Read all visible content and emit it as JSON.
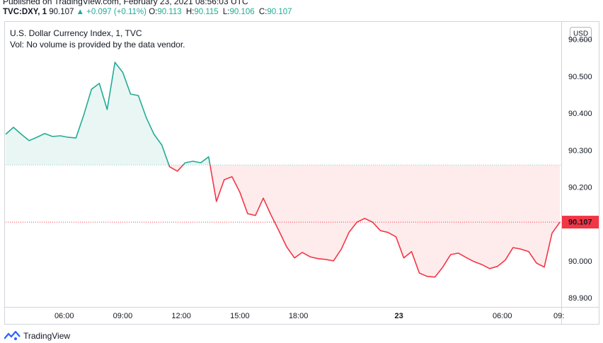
{
  "header": {
    "published": "Published on TradingView.com, February 23, 2021 08:56:03 UTC",
    "symbol": "TVC:DXY, 1",
    "price": "90.107",
    "change": "▲ +0.097 (+0.11%)",
    "ohlc": [
      {
        "key": "O:",
        "value": "90.113"
      },
      {
        "key": "H:",
        "value": "90.115"
      },
      {
        "key": "L:",
        "value": "90.106"
      },
      {
        "key": "C:",
        "value": "90.107"
      }
    ]
  },
  "chart_data": {
    "type": "line",
    "title": "U.S. Dollar Currency Index, 1, TVC",
    "subtitle": "Vol: No volume is provided by the data vendor.",
    "currency": "USD",
    "x": [
      3.0,
      3.4,
      3.8,
      4.2,
      4.6,
      5.0,
      5.4,
      5.8,
      6.2,
      6.6,
      7.0,
      7.4,
      7.8,
      8.2,
      8.6,
      9.0,
      9.4,
      9.8,
      10.2,
      10.6,
      11.0,
      11.4,
      11.8,
      12.2,
      12.6,
      13.0,
      13.4,
      13.8,
      14.2,
      14.6,
      15.0,
      15.4,
      15.8,
      16.2,
      16.6,
      17.0,
      17.4,
      17.8,
      18.2,
      18.6,
      19.0,
      19.4,
      19.8,
      20.2,
      20.6,
      21.0,
      21.4,
      21.8,
      22.2,
      22.6,
      23.0,
      23.4,
      23.8,
      24.2,
      24.6,
      25.0,
      25.4,
      25.8,
      26.2,
      26.6,
      27.0,
      27.4,
      27.8,
      28.2,
      28.6,
      29.0,
      29.4,
      29.8,
      30.2,
      30.6,
      31.0,
      31.4
    ],
    "series": [
      {
        "name": "TVC:DXY",
        "color": "#22ab94",
        "color_below": "#f23645",
        "values": [
          90.345,
          90.364,
          90.345,
          90.328,
          90.337,
          90.347,
          90.339,
          90.341,
          90.337,
          90.335,
          90.397,
          90.467,
          90.483,
          90.412,
          90.54,
          90.513,
          90.454,
          90.45,
          90.391,
          90.345,
          90.316,
          90.257,
          90.245,
          90.268,
          90.272,
          90.268,
          90.284,
          90.163,
          90.222,
          90.23,
          90.188,
          90.13,
          90.125,
          90.172,
          90.126,
          90.084,
          90.04,
          90.01,
          90.025,
          90.013,
          90.008,
          90.006,
          90.002,
          90.034,
          90.08,
          90.107,
          90.117,
          90.107,
          90.084,
          90.079,
          90.067,
          90.01,
          90.027,
          89.969,
          89.96,
          89.958,
          89.985,
          90.019,
          90.023,
          90.011,
          90.0,
          89.992,
          89.981,
          89.987,
          90.004,
          90.038,
          90.034,
          90.027,
          89.996,
          89.985,
          90.077,
          90.107
        ]
      }
    ],
    "baseline": 90.262,
    "last_price": {
      "value": 90.107,
      "label": "90.107"
    },
    "xlim": [
      3.0,
      31.47
    ],
    "xticks": [
      {
        "value": 6,
        "label": "06:00"
      },
      {
        "value": 9,
        "label": "09:00"
      },
      {
        "value": 12,
        "label": "12:00"
      },
      {
        "value": 15,
        "label": "15:00"
      },
      {
        "value": 18,
        "label": "18:00"
      },
      {
        "value": 23.15,
        "label": "23"
      },
      {
        "value": 28.45,
        "label": "06:00"
      },
      {
        "value": 31.35,
        "label": "09:"
      }
    ],
    "ylim": [
      89.881,
      90.638
    ],
    "yticks": [
      {
        "value": 89.9,
        "label": "89.900"
      },
      {
        "value": 90.0,
        "label": "90.000"
      },
      {
        "value": 90.1,
        "label": "90.100"
      },
      {
        "value": 90.2,
        "label": "90.200"
      },
      {
        "value": 90.3,
        "label": "90.300"
      },
      {
        "value": 90.4,
        "label": "90.400"
      },
      {
        "value": 90.5,
        "label": "90.500"
      },
      {
        "value": 90.6,
        "label": "90.600"
      }
    ],
    "grid": false
  },
  "footer": {
    "brand": "TradingView"
  }
}
